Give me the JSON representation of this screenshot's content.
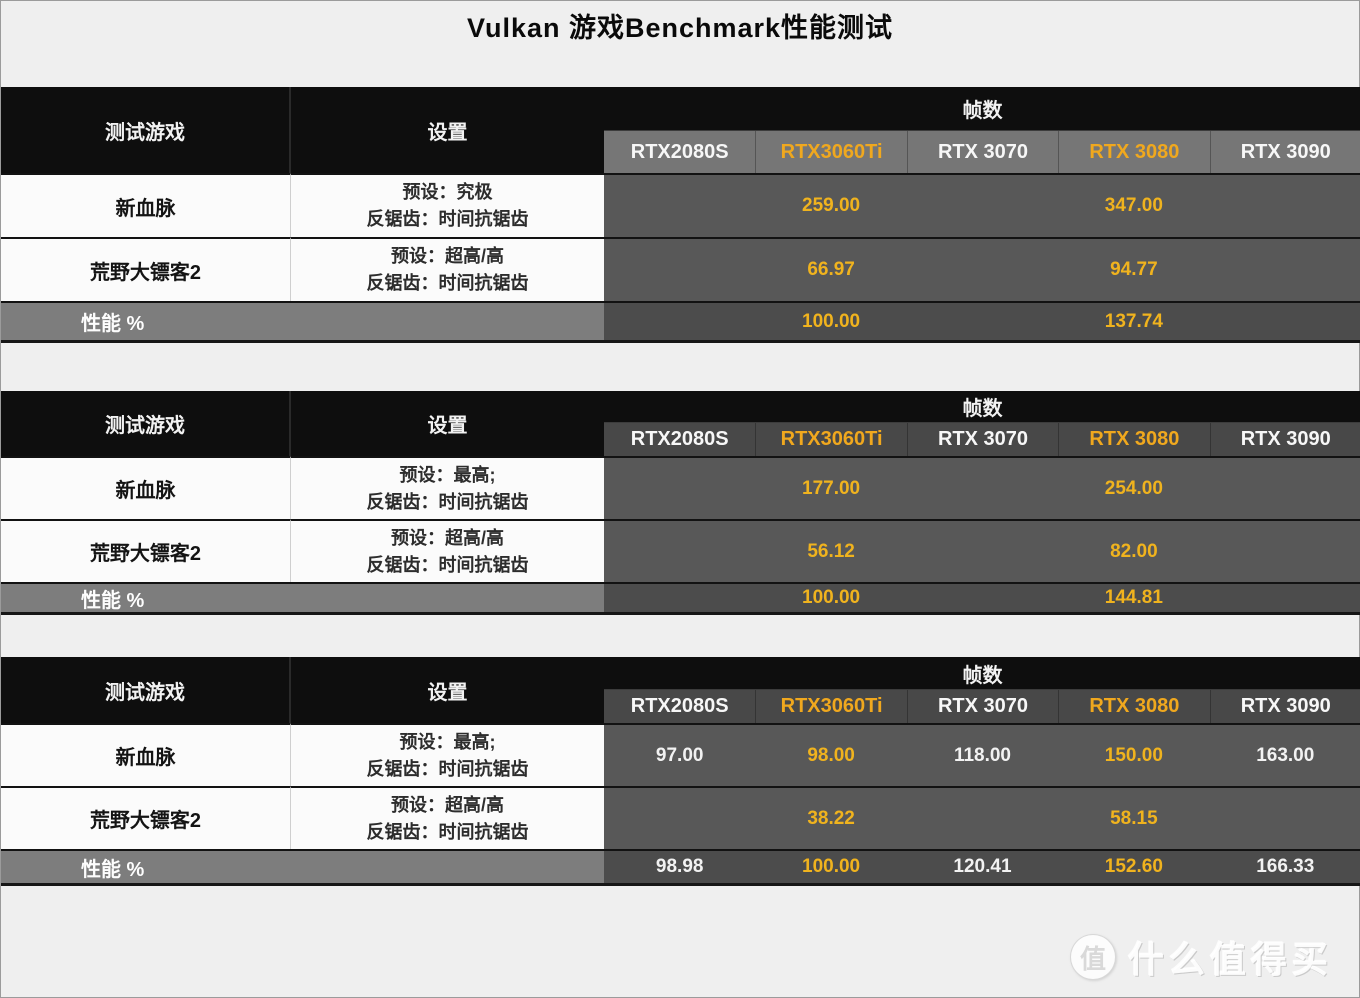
{
  "page": {
    "title": "Vulkan 游戏Benchmark性能测试"
  },
  "colors": {
    "highlight_gold": "#F0A81E",
    "header_black": "#0e0e0e",
    "data_cell_gray": "#585858",
    "gpu_row_gray_t1": "#767676",
    "gpu_row_gray_t2_t3": "#484848",
    "perf_label_gray": "#7d7d7d"
  },
  "columns": {
    "game_header": "测试游戏",
    "settings_header": "设置",
    "frames_header": "帧数",
    "perf_label": "性能 %",
    "gpus": [
      {
        "label": "RTX2080S",
        "highlight": false
      },
      {
        "label": "RTX3060Ti",
        "highlight": true
      },
      {
        "label": "RTX 3070",
        "highlight": false
      },
      {
        "label": "RTX 3080",
        "highlight": true
      },
      {
        "label": "RTX 3090",
        "highlight": false
      }
    ]
  },
  "tables": [
    {
      "rows": [
        {
          "game": "新血脉",
          "settings": [
            "预设：究极",
            "反锯齿：时间抗锯齿"
          ],
          "values": [
            "",
            "259.00",
            "",
            "347.00",
            ""
          ]
        },
        {
          "game": "荒野大镖客2",
          "settings": [
            "预设：超高/高",
            "反锯齿：时间抗锯齿"
          ],
          "values": [
            "",
            "66.97",
            "",
            "94.77",
            ""
          ]
        }
      ],
      "perf": [
        "",
        "100.00",
        "",
        "137.74",
        ""
      ]
    },
    {
      "rows": [
        {
          "game": "新血脉",
          "settings": [
            "预设：最高;",
            "反锯齿：时间抗锯齿"
          ],
          "values": [
            "",
            "177.00",
            "",
            "254.00",
            ""
          ]
        },
        {
          "game": "荒野大镖客2",
          "settings": [
            "预设：超高/高",
            "反锯齿：时间抗锯齿"
          ],
          "values": [
            "",
            "56.12",
            "",
            "82.00",
            ""
          ]
        }
      ],
      "perf": [
        "",
        "100.00",
        "",
        "144.81",
        ""
      ]
    },
    {
      "rows": [
        {
          "game": "新血脉",
          "settings": [
            "预设：最高;",
            "反锯齿：时间抗锯齿"
          ],
          "values": [
            "97.00",
            "98.00",
            "118.00",
            "150.00",
            "163.00"
          ]
        },
        {
          "game": "荒野大镖客2",
          "settings": [
            "预设：超高/高",
            "反锯齿：时间抗锯齿"
          ],
          "values": [
            "",
            "38.22",
            "",
            "58.15",
            ""
          ]
        }
      ],
      "perf": [
        "98.98",
        "100.00",
        "120.41",
        "152.60",
        "166.33"
      ]
    }
  ],
  "watermark": {
    "badge": "值",
    "text": "什么值得买"
  },
  "chart_data": [
    {
      "type": "table",
      "title": "Vulkan 游戏Benchmark性能测试 (表1)",
      "columns": [
        "测试游戏",
        "设置",
        "RTX2080S",
        "RTX3060Ti",
        "RTX 3070",
        "RTX 3080",
        "RTX 3090"
      ],
      "rows": [
        [
          "新血脉",
          "预设：究极 反锯齿：时间抗锯齿",
          null,
          259.0,
          null,
          347.0,
          null
        ],
        [
          "荒野大镖客2",
          "预设：超高/高 反锯齿：时间抗锯齿",
          null,
          66.97,
          null,
          94.77,
          null
        ],
        [
          "性能 %",
          "",
          null,
          100.0,
          null,
          137.74,
          null
        ]
      ]
    },
    {
      "type": "table",
      "title": "Vulkan 游戏Benchmark性能测试 (表2)",
      "columns": [
        "测试游戏",
        "设置",
        "RTX2080S",
        "RTX3060Ti",
        "RTX 3070",
        "RTX 3080",
        "RTX 3090"
      ],
      "rows": [
        [
          "新血脉",
          "预设：最高; 反锯齿：时间抗锯齿",
          null,
          177.0,
          null,
          254.0,
          null
        ],
        [
          "荒野大镖客2",
          "预设：超高/高 反锯齿：时间抗锯齿",
          null,
          56.12,
          null,
          82.0,
          null
        ],
        [
          "性能 %",
          "",
          null,
          100.0,
          null,
          144.81,
          null
        ]
      ]
    },
    {
      "type": "table",
      "title": "Vulkan 游戏Benchmark性能测试 (表3)",
      "columns": [
        "测试游戏",
        "设置",
        "RTX2080S",
        "RTX3060Ti",
        "RTX 3070",
        "RTX 3080",
        "RTX 3090"
      ],
      "rows": [
        [
          "新血脉",
          "预设：最高; 反锯齿：时间抗锯齿",
          97.0,
          98.0,
          118.0,
          150.0,
          163.0
        ],
        [
          "荒野大镖客2",
          "预设：超高/高 反锯齿：时间抗锯齿",
          null,
          38.22,
          null,
          58.15,
          null
        ],
        [
          "性能 %",
          "",
          98.98,
          100.0,
          120.41,
          152.6,
          166.33
        ]
      ]
    }
  ]
}
